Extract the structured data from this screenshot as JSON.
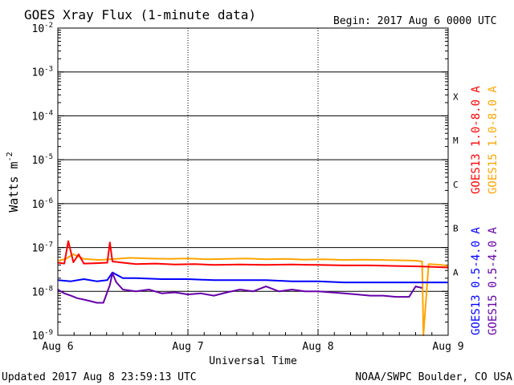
{
  "header": {
    "title": "GOES Xray Flux (1-minute data)",
    "begin": "Begin:  2017 Aug 6 0000 UTC"
  },
  "footer": {
    "updated": "Updated 2017 Aug  8 23:59:13 UTC",
    "credit": "NOAA/SWPC Boulder, CO USA"
  },
  "chart_data": {
    "type": "line",
    "title": "GOES Xray Flux (1-minute data)",
    "xlabel": "Universal Time",
    "ylabel": "Watts m",
    "ylabel_superscript": "-2",
    "yscale": "log",
    "ylim": [
      1e-09,
      0.01
    ],
    "xlim": [
      0,
      3
    ],
    "x_ticks": [
      {
        "x": 0,
        "label": "Aug 6"
      },
      {
        "x": 1,
        "label": "Aug 7"
      },
      {
        "x": 2,
        "label": "Aug 8"
      },
      {
        "x": 3,
        "label": "Aug 9"
      }
    ],
    "y_ticks": [
      {
        "base": "10",
        "exp": "-9",
        "value": 1e-09
      },
      {
        "base": "10",
        "exp": "-8",
        "value": 1e-08
      },
      {
        "base": "10",
        "exp": "-7",
        "value": 1e-07
      },
      {
        "base": "10",
        "exp": "-6",
        "value": 1e-06
      },
      {
        "base": "10",
        "exp": "-5",
        "value": 1e-05
      },
      {
        "base": "10",
        "exp": "-4",
        "value": 0.0001
      },
      {
        "base": "10",
        "exp": "-3",
        "value": 0.001
      },
      {
        "base": "10",
        "exp": "-2",
        "value": 0.01
      }
    ],
    "flare_classes": [
      {
        "label": "A",
        "value": 1e-08
      },
      {
        "label": "B",
        "value": 1e-07
      },
      {
        "label": "C",
        "value": 1e-06
      },
      {
        "label": "M",
        "value": 1e-05
      },
      {
        "label": "X",
        "value": 0.0001
      }
    ],
    "grid": true,
    "x_unit": "days since 2017 Aug 6 0000 UTC",
    "series": [
      {
        "name": "GOES15 1.0-8.0 A",
        "color": "#ffa500",
        "x": [
          0,
          0.06,
          0.12,
          0.2,
          0.32,
          0.45,
          0.55,
          0.7,
          0.85,
          1.0,
          1.15,
          1.3,
          1.45,
          1.6,
          1.75,
          1.9,
          2.05,
          2.2,
          2.35,
          2.5,
          2.65,
          2.75,
          2.8,
          2.81,
          2.85,
          2.95,
          3.0
        ],
        "y": [
          5e-08,
          5.5e-08,
          7e-08,
          5.5e-08,
          5.2e-08,
          5.5e-08,
          5.8e-08,
          5.6e-08,
          5.5e-08,
          5.6e-08,
          5.4e-08,
          5.5e-08,
          5.6e-08,
          5.4e-08,
          5.5e-08,
          5.3e-08,
          5.4e-08,
          5.2e-08,
          5.3e-08,
          5.2e-08,
          5.1e-08,
          5e-08,
          4.8e-08,
          1e-09,
          4.2e-08,
          4e-08,
          3.8e-08
        ]
      },
      {
        "name": "GOES13 1.0-8.0 A",
        "color": "#ff0000",
        "x": [
          0,
          0.05,
          0.08,
          0.1,
          0.12,
          0.16,
          0.2,
          0.3,
          0.38,
          0.4,
          0.42,
          0.5,
          0.6,
          0.75,
          0.9,
          1.05,
          1.2,
          1.4,
          1.6,
          1.8,
          2.0,
          2.2,
          2.4,
          2.6,
          2.8,
          3.0
        ],
        "y": [
          4.5e-08,
          4.3e-08,
          1.4e-07,
          8e-08,
          4.6e-08,
          7e-08,
          4.3e-08,
          4.4e-08,
          4.5e-08,
          1.3e-07,
          4.8e-08,
          4.5e-08,
          4.2e-08,
          4.3e-08,
          4.1e-08,
          4.2e-08,
          4e-08,
          4.1e-08,
          4e-08,
          4.1e-08,
          4e-08,
          3.9e-08,
          3.9e-08,
          3.8e-08,
          3.7e-08,
          3.5e-08
        ]
      },
      {
        "name": "GOES13 0.5-4.0 A",
        "color": "#0000ff",
        "x": [
          0,
          0.1,
          0.2,
          0.3,
          0.38,
          0.42,
          0.5,
          0.6,
          0.8,
          1.0,
          1.2,
          1.4,
          1.6,
          1.8,
          2.0,
          2.2,
          2.4,
          2.6,
          2.8,
          3.0
        ],
        "y": [
          1.8e-08,
          1.7e-08,
          1.9e-08,
          1.7e-08,
          1.8e-08,
          2.7e-08,
          2e-08,
          2e-08,
          1.9e-08,
          1.9e-08,
          1.8e-08,
          1.8e-08,
          1.8e-08,
          1.7e-08,
          1.7e-08,
          1.6e-08,
          1.6e-08,
          1.6e-08,
          1.6e-08,
          1.6e-08
        ]
      },
      {
        "name": "GOES15 0.5-4.0 A",
        "color": "#6600aa",
        "x": [
          0,
          0.05,
          0.1,
          0.15,
          0.2,
          0.25,
          0.3,
          0.35,
          0.4,
          0.42,
          0.45,
          0.5,
          0.6,
          0.7,
          0.8,
          0.9,
          1.0,
          1.1,
          1.2,
          1.3,
          1.4,
          1.5,
          1.6,
          1.7,
          1.8,
          1.9,
          2.0,
          2.1,
          2.2,
          2.3,
          2.4,
          2.5,
          2.6,
          2.7,
          2.75,
          2.8
        ],
        "y": [
          1.1e-08,
          9e-09,
          8e-09,
          7e-09,
          6.5e-09,
          6e-09,
          5.5e-09,
          5.5e-09,
          1.4e-08,
          2.6e-08,
          1.6e-08,
          1.1e-08,
          1e-08,
          1.1e-08,
          9e-09,
          9.5e-09,
          8.5e-09,
          9e-09,
          8e-09,
          9.5e-09,
          1.1e-08,
          1e-08,
          1.3e-08,
          1e-08,
          1.1e-08,
          1e-08,
          1e-08,
          9.5e-09,
          9e-09,
          8.5e-09,
          8e-09,
          8e-09,
          7.5e-09,
          7.5e-09,
          1.3e-08,
          1.2e-08
        ]
      }
    ]
  }
}
